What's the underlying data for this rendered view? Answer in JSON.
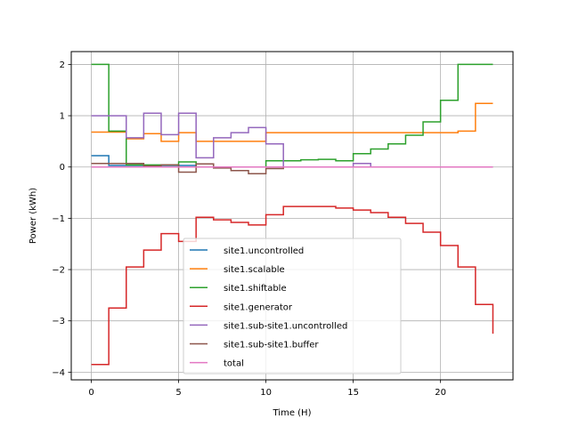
{
  "chart_data": {
    "type": "line",
    "step": "post",
    "title": "",
    "xlabel": "Time (H)",
    "ylabel": "Power (kWh)",
    "xlim": [
      -1.15,
      24.15
    ],
    "ylim": [
      -4.15,
      2.25
    ],
    "grid": true,
    "legend_position": "lower-center",
    "xticks": [
      0,
      5,
      10,
      15,
      20
    ],
    "xtick_labels": [
      "0",
      "5",
      "10",
      "15",
      "20"
    ],
    "yticks": [
      -4,
      -3,
      -2,
      -1,
      0,
      1,
      2
    ],
    "ytick_labels": [
      "−4",
      "−3",
      "−2",
      "−1",
      "0",
      "1",
      "2"
    ],
    "x": [
      0,
      1,
      2,
      3,
      4,
      5,
      6,
      7,
      8,
      9,
      10,
      11,
      12,
      13,
      14,
      15,
      16,
      17,
      18,
      19,
      20,
      21,
      22,
      23
    ],
    "series": [
      {
        "name": "site1.uncontrolled",
        "color": "#1f77b4",
        "values": [
          0.22,
          0.03,
          0.03,
          0.03,
          0.03,
          0.03,
          0.0,
          0.0,
          0.0,
          0.0,
          0.0,
          0.0,
          0.0,
          0.0,
          0.0,
          0.0,
          0.0,
          0.0,
          0.0,
          0.0,
          0.0,
          0.0,
          0.0,
          0.0
        ]
      },
      {
        "name": "site1.scalable",
        "color": "#ff7f0e",
        "values": [
          0.68,
          0.68,
          0.55,
          0.65,
          0.5,
          0.67,
          0.5,
          0.5,
          0.5,
          0.5,
          0.67,
          0.67,
          0.67,
          0.67,
          0.67,
          0.67,
          0.67,
          0.67,
          0.67,
          0.67,
          0.67,
          0.7,
          1.24,
          1.24
        ]
      },
      {
        "name": "site1.shiftable",
        "color": "#2ca02c",
        "values": [
          2.0,
          0.7,
          0.04,
          0.04,
          0.04,
          0.1,
          0.0,
          0.0,
          0.0,
          0.0,
          0.12,
          0.12,
          0.14,
          0.15,
          0.12,
          0.26,
          0.35,
          0.45,
          0.62,
          0.88,
          1.3,
          2.0,
          2.0,
          2.0
        ]
      },
      {
        "name": "site1.generator",
        "color": "#d62728",
        "values": [
          -3.85,
          -2.75,
          -1.95,
          -1.62,
          -1.3,
          -1.45,
          -0.98,
          -1.03,
          -1.08,
          -1.13,
          -0.93,
          -0.77,
          -0.77,
          -0.77,
          -0.8,
          -0.84,
          -0.89,
          -0.98,
          -1.1,
          -1.27,
          -1.53,
          -1.95,
          -2.68,
          -3.25
        ]
      },
      {
        "name": "site1.sub-site1.uncontrolled",
        "color": "#9467bd",
        "values": [
          1.0,
          1.0,
          0.57,
          1.05,
          0.63,
          1.05,
          0.18,
          0.57,
          0.67,
          0.77,
          0.45,
          0.0,
          0.0,
          0.0,
          0.0,
          0.07,
          0.0,
          0.0,
          0.0,
          0.0,
          0.0,
          0.0,
          0.0,
          0.0
        ]
      },
      {
        "name": "site1.sub-site1.buffer",
        "color": "#8c564b",
        "values": [
          0.07,
          0.07,
          0.07,
          0.02,
          0.04,
          -0.1,
          0.06,
          -0.02,
          -0.07,
          -0.13,
          -0.03,
          0.0,
          0.0,
          0.0,
          0.0,
          0.0,
          0.0,
          0.0,
          0.0,
          0.0,
          0.0,
          0.0,
          0.0,
          0.0
        ]
      },
      {
        "name": "total",
        "color": "#e377c2",
        "values": [
          0,
          0,
          0,
          0,
          0,
          0,
          0,
          0,
          0,
          0,
          0,
          0,
          0,
          0,
          0,
          0,
          0,
          0,
          0,
          0,
          0,
          0,
          0,
          0
        ]
      }
    ]
  }
}
